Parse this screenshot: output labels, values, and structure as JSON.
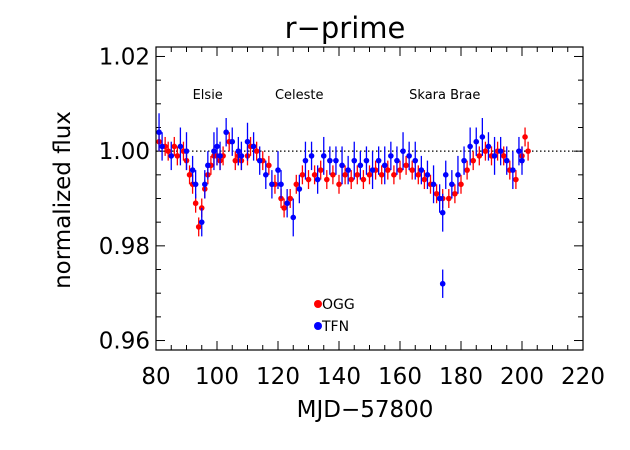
{
  "chart_data": {
    "type": "scatter",
    "title": "r−prime",
    "xlabel": "MJD−57800",
    "ylabel": "normalized flux",
    "xlim": [
      80,
      220
    ],
    "ylim": [
      0.958,
      1.022
    ],
    "x_ticks": [
      80,
      100,
      120,
      140,
      160,
      180,
      200,
      220
    ],
    "x_tick_labels": [
      "80",
      "100",
      "120",
      "140",
      "160",
      "180",
      "200",
      "220"
    ],
    "y_ticks": [
      0.96,
      0.98,
      1.0,
      1.02
    ],
    "y_tick_labels": [
      "0.96",
      "0.98",
      "1.00",
      "1.02"
    ],
    "reference_line": 1.0,
    "annotations": [
      {
        "text": "Elsie",
        "x": 92,
        "y": 1.011
      },
      {
        "text": "Celeste",
        "x": 119,
        "y": 1.011
      },
      {
        "text": "Skara Brae",
        "x": 163,
        "y": 1.011
      }
    ],
    "legend_placement": "bottom-center",
    "series": [
      {
        "name": "OGG",
        "color": "#ff0000",
        "points": [
          [
            81,
            1.002,
            0.002
          ],
          [
            83,
            1.001,
            0.002
          ],
          [
            84,
            1.0,
            0.002
          ],
          [
            86,
            1.001,
            0.002
          ],
          [
            87,
            0.999,
            0.002
          ],
          [
            89,
            1.0,
            0.002
          ],
          [
            90,
            0.998,
            0.002
          ],
          [
            91,
            0.995,
            0.002
          ],
          [
            92,
            0.993,
            0.002
          ],
          [
            93,
            0.989,
            0.002
          ],
          [
            94,
            0.984,
            0.002
          ],
          [
            95,
            0.988,
            0.002
          ],
          [
            96,
            0.992,
            0.002
          ],
          [
            97,
            0.995,
            0.002
          ],
          [
            98,
            0.997,
            0.002
          ],
          [
            99,
            0.999,
            0.002
          ],
          [
            100,
            0.999,
            0.002
          ],
          [
            101,
            0.998,
            0.002
          ],
          [
            102,
            0.999,
            0.002
          ],
          [
            104,
            1.002,
            0.002
          ],
          [
            106,
            0.998,
            0.002
          ],
          [
            107,
            0.999,
            0.002
          ],
          [
            108,
            0.998,
            0.002
          ],
          [
            110,
            0.999,
            0.002
          ],
          [
            111,
            1.001,
            0.002
          ],
          [
            113,
            1.0,
            0.002
          ],
          [
            115,
            0.998,
            0.002
          ],
          [
            117,
            0.997,
            0.002
          ],
          [
            119,
            0.993,
            0.002
          ],
          [
            121,
            0.99,
            0.002
          ],
          [
            122,
            0.988,
            0.002
          ],
          [
            124,
            0.99,
            0.002
          ],
          [
            126,
            0.993,
            0.002
          ],
          [
            128,
            0.995,
            0.002
          ],
          [
            130,
            0.994,
            0.002
          ],
          [
            132,
            0.995,
            0.002
          ],
          [
            134,
            0.996,
            0.002
          ],
          [
            136,
            0.994,
            0.002
          ],
          [
            138,
            0.995,
            0.002
          ],
          [
            140,
            0.993,
            0.002
          ],
          [
            142,
            0.995,
            0.002
          ],
          [
            144,
            0.994,
            0.002
          ],
          [
            146,
            0.995,
            0.002
          ],
          [
            148,
            0.994,
            0.002
          ],
          [
            150,
            0.995,
            0.002
          ],
          [
            152,
            0.996,
            0.002
          ],
          [
            154,
            0.995,
            0.002
          ],
          [
            156,
            0.996,
            0.002
          ],
          [
            158,
            0.995,
            0.002
          ],
          [
            160,
            0.996,
            0.002
          ],
          [
            162,
            0.997,
            0.002
          ],
          [
            164,
            0.996,
            0.002
          ],
          [
            166,
            0.995,
            0.002
          ],
          [
            168,
            0.994,
            0.002
          ],
          [
            170,
            0.993,
            0.002
          ],
          [
            172,
            0.991,
            0.002
          ],
          [
            174,
            0.99,
            0.002
          ],
          [
            176,
            0.99,
            0.002
          ],
          [
            178,
            0.991,
            0.002
          ],
          [
            180,
            0.993,
            0.002
          ],
          [
            182,
            0.996,
            0.002
          ],
          [
            184,
            0.998,
            0.002
          ],
          [
            186,
            0.999,
            0.002
          ],
          [
            188,
            1.0,
            0.002
          ],
          [
            190,
            0.999,
            0.002
          ],
          [
            192,
            1.0,
            0.002
          ],
          [
            194,
            0.999,
            0.002
          ],
          [
            196,
            0.996,
            0.002
          ],
          [
            198,
            0.994,
            0.002
          ],
          [
            200,
            0.999,
            0.002
          ],
          [
            201,
            1.003,
            0.002
          ],
          [
            202,
            1.0,
            0.002
          ]
        ]
      },
      {
        "name": "TFN",
        "color": "#0000ff",
        "points": [
          [
            81,
            1.004,
            0.004
          ],
          [
            82,
            1.001,
            0.003
          ],
          [
            85,
            0.999,
            0.003
          ],
          [
            88,
            1.001,
            0.004
          ],
          [
            90,
            1.0,
            0.004
          ],
          [
            92,
            0.996,
            0.003
          ],
          [
            93,
            0.993,
            0.003
          ],
          [
            95,
            0.985,
            0.003
          ],
          [
            96,
            0.993,
            0.003
          ],
          [
            97,
            0.997,
            0.003
          ],
          [
            99,
            1.0,
            0.004
          ],
          [
            100,
            1.001,
            0.004
          ],
          [
            101,
            0.999,
            0.003
          ],
          [
            103,
            1.004,
            0.003
          ],
          [
            105,
            1.002,
            0.003
          ],
          [
            107,
            1.0,
            0.003
          ],
          [
            108,
            0.999,
            0.003
          ],
          [
            110,
            1.002,
            0.004
          ],
          [
            112,
            1.001,
            0.003
          ],
          [
            114,
            0.998,
            0.003
          ],
          [
            116,
            0.995,
            0.003
          ],
          [
            118,
            0.993,
            0.003
          ],
          [
            120,
            0.996,
            0.004
          ],
          [
            121,
            0.993,
            0.003
          ],
          [
            123,
            0.989,
            0.003
          ],
          [
            125,
            0.986,
            0.004
          ],
          [
            127,
            0.992,
            0.003
          ],
          [
            129,
            0.998,
            0.004
          ],
          [
            131,
            0.999,
            0.003
          ],
          [
            133,
            0.994,
            0.003
          ],
          [
            135,
            0.999,
            0.004
          ],
          [
            137,
            0.998,
            0.003
          ],
          [
            139,
            0.998,
            0.003
          ],
          [
            141,
            0.997,
            0.004
          ],
          [
            143,
            0.996,
            0.003
          ],
          [
            145,
            0.998,
            0.004
          ],
          [
            147,
            0.997,
            0.003
          ],
          [
            149,
            0.998,
            0.003
          ],
          [
            151,
            0.996,
            0.004
          ],
          [
            153,
            0.998,
            0.003
          ],
          [
            155,
            0.997,
            0.004
          ],
          [
            157,
            0.999,
            0.003
          ],
          [
            159,
            0.998,
            0.003
          ],
          [
            161,
            1.0,
            0.004
          ],
          [
            163,
            0.999,
            0.003
          ],
          [
            165,
            0.998,
            0.004
          ],
          [
            167,
            0.996,
            0.003
          ],
          [
            169,
            0.995,
            0.003
          ],
          [
            171,
            0.993,
            0.004
          ],
          [
            173,
            0.99,
            0.003
          ],
          [
            174,
            0.987,
            0.004
          ],
          [
            175,
            0.995,
            0.003
          ],
          [
            174,
            0.972,
            0.003
          ],
          [
            177,
            0.993,
            0.003
          ],
          [
            179,
            0.995,
            0.004
          ],
          [
            181,
            0.998,
            0.003
          ],
          [
            183,
            1.001,
            0.004
          ],
          [
            185,
            1.002,
            0.003
          ],
          [
            187,
            1.003,
            0.004
          ],
          [
            189,
            1.001,
            0.003
          ],
          [
            191,
            0.999,
            0.004
          ],
          [
            193,
            1.0,
            0.003
          ],
          [
            195,
            0.998,
            0.003
          ],
          [
            197,
            0.996,
            0.004
          ],
          [
            199,
            1.0,
            0.003
          ],
          [
            200,
            0.998,
            0.003
          ]
        ]
      }
    ]
  }
}
